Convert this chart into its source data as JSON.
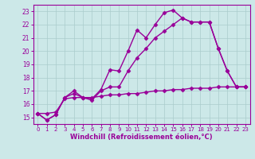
{
  "xlabel": "Windchill (Refroidissement éolien,°C)",
  "bg_color": "#cce8e8",
  "line_color": "#990099",
  "grid_color": "#aacccc",
  "xlim": [
    -0.5,
    23.5
  ],
  "ylim": [
    14.5,
    23.5
  ],
  "yticks": [
    15,
    16,
    17,
    18,
    19,
    20,
    21,
    22,
    23
  ],
  "xticks": [
    0,
    1,
    2,
    3,
    4,
    5,
    6,
    7,
    8,
    9,
    10,
    11,
    12,
    13,
    14,
    15,
    16,
    17,
    18,
    19,
    20,
    21,
    22,
    23
  ],
  "series1_y": [
    15.3,
    14.8,
    15.2,
    16.5,
    17.0,
    16.5,
    16.4,
    17.1,
    18.6,
    18.5,
    20.0,
    21.6,
    21.0,
    22.0,
    22.9,
    23.1,
    22.5,
    22.2,
    22.2,
    22.2,
    20.2,
    18.5,
    17.3,
    17.3
  ],
  "series2_y": [
    15.3,
    14.8,
    15.2,
    16.5,
    16.8,
    16.5,
    16.3,
    17.0,
    17.3,
    17.3,
    18.5,
    19.5,
    20.2,
    21.0,
    21.5,
    22.0,
    22.5,
    22.2,
    22.2,
    22.2,
    20.2,
    18.5,
    17.3,
    17.3
  ],
  "series3_y": [
    15.3,
    15.3,
    15.4,
    16.4,
    16.5,
    16.5,
    16.5,
    16.6,
    16.7,
    16.7,
    16.8,
    16.8,
    16.9,
    17.0,
    17.0,
    17.1,
    17.1,
    17.2,
    17.2,
    17.2,
    17.3,
    17.3,
    17.3,
    17.3
  ],
  "markersize": 2.5,
  "linewidth": 1.0
}
